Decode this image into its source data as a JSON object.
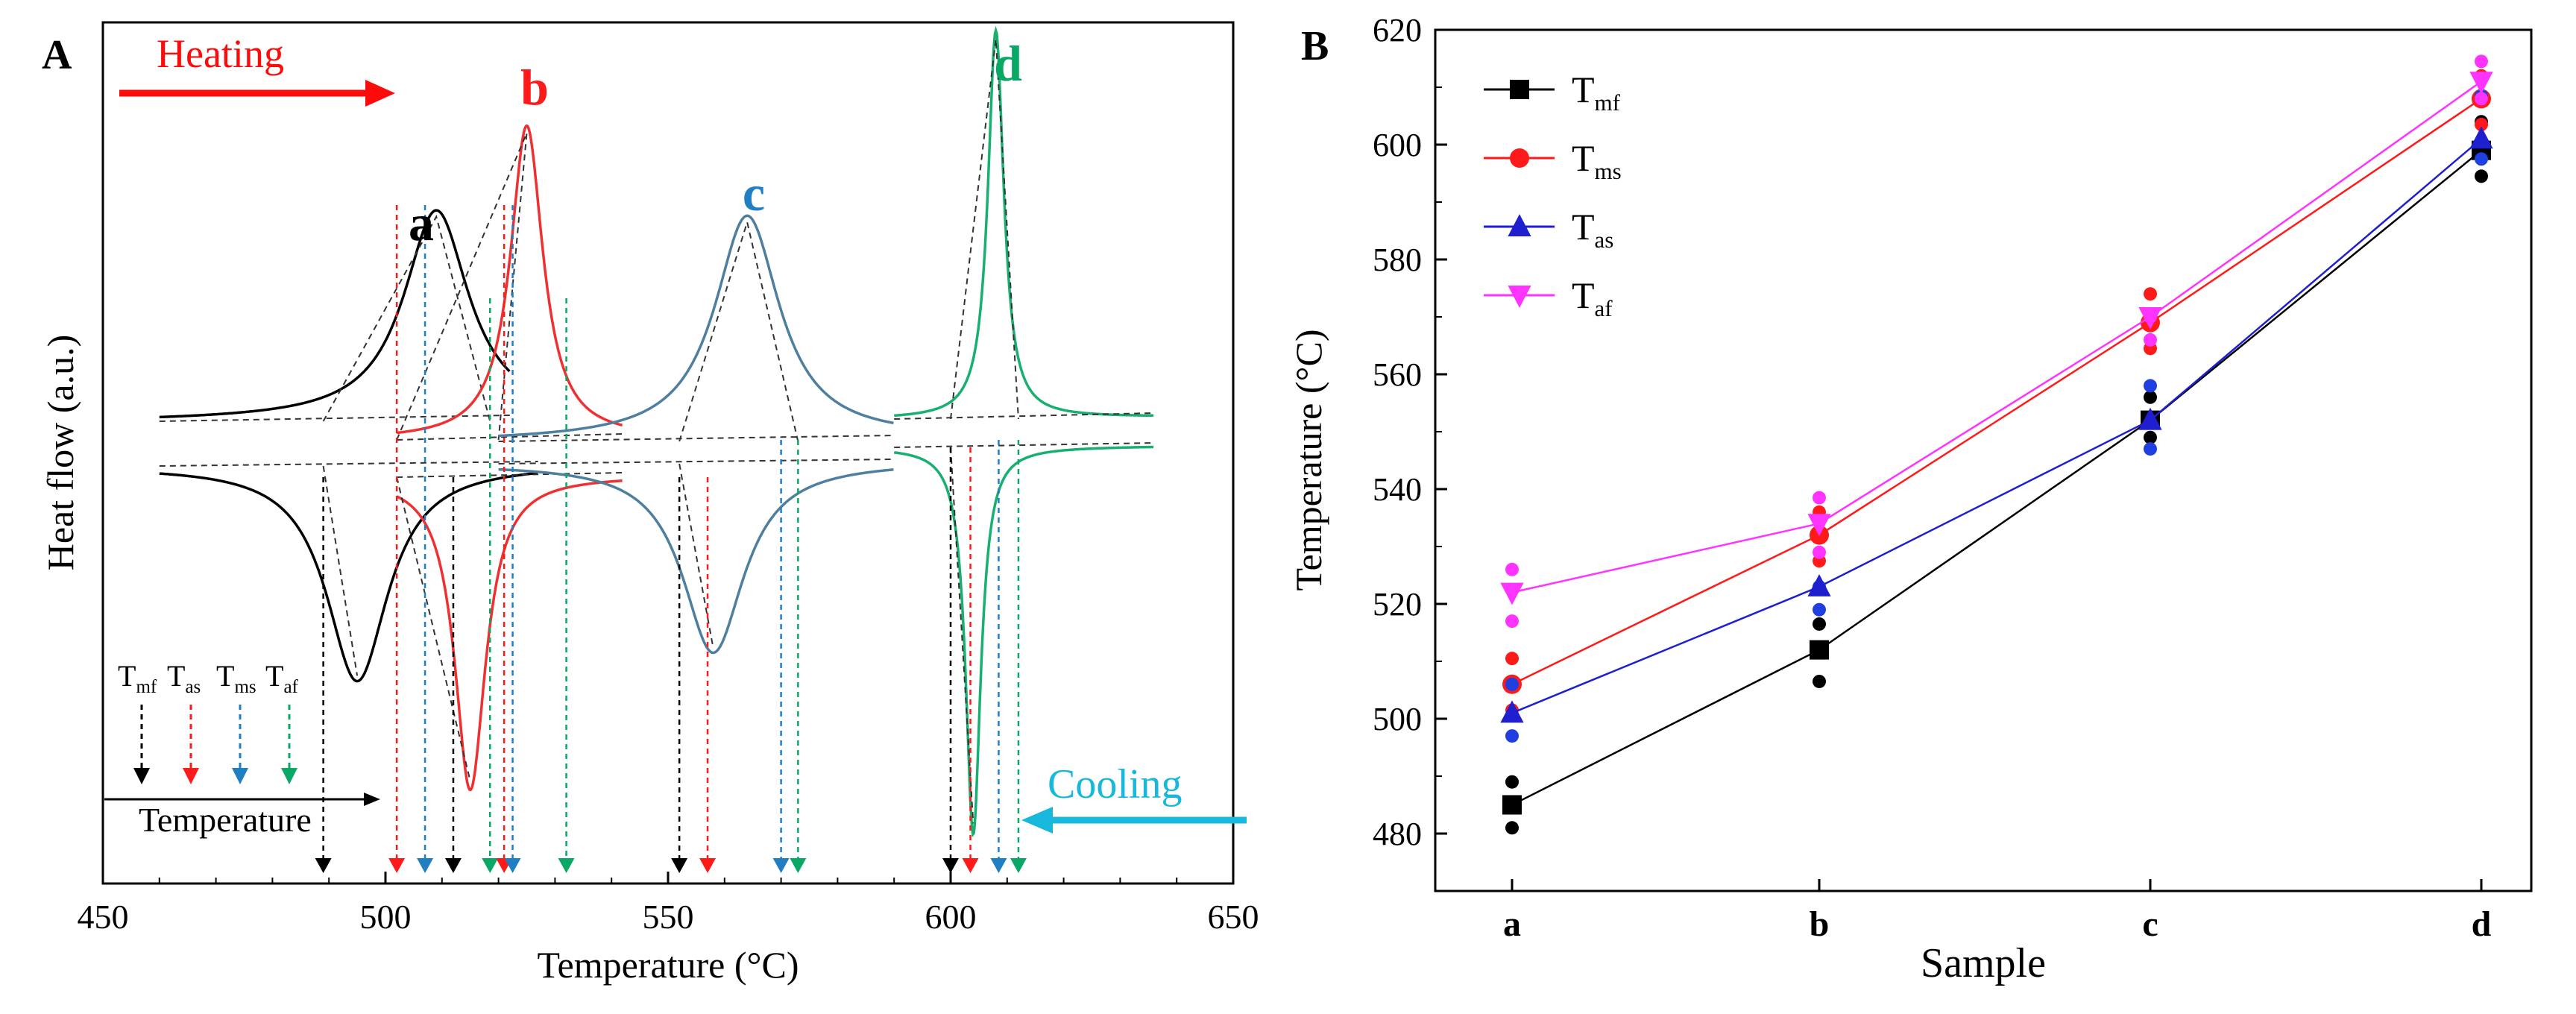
{
  "colors": {
    "black": "#000000",
    "red": "#ff1a1a",
    "blue": "#1f7fc2",
    "green": "#0aa865",
    "teal": "#4f7f9f",
    "dsc_red": "#f03030",
    "dsc_green": "#18b070",
    "heating_arrow": "#ff0a0a",
    "cooling_arrow": "#18b8dc",
    "pink": "#ff33ff",
    "tas_blue": "#1f1fd0",
    "marker_blue": "#1f3fe0"
  },
  "chart_data": [
    {
      "type": "line",
      "panel_label": "A",
      "title": "",
      "xlabel": "Temperature (°C)",
      "ylabel": "Heat flow (a.u.)",
      "xlim": [
        450,
        650
      ],
      "xticks": [
        450,
        500,
        550,
        600,
        650
      ],
      "grid": false,
      "annotations": {
        "heating": "Heating",
        "cooling": "Cooling",
        "temperature_arrow": "Temperature"
      },
      "legend": [
        {
          "label": "T",
          "sub": "mf",
          "color": "#000000"
        },
        {
          "label": "T",
          "sub": "as",
          "color": "#ff1a1a"
        },
        {
          "label": "T",
          "sub": "ms",
          "color": "#1f7fc2"
        },
        {
          "label": "T",
          "sub": "af",
          "color": "#0aa865"
        }
      ],
      "series": [
        {
          "name": "a",
          "color": "#000000",
          "heating_peak": 509,
          "cooling_peak": 495,
          "x_range": [
            460,
            522
          ]
        },
        {
          "name": "b",
          "color": "#f03030",
          "heating_peak": 525,
          "cooling_peak": 515,
          "x_range": [
            502,
            542
          ]
        },
        {
          "name": "c",
          "color": "#4f7f9f",
          "heating_peak": 564,
          "cooling_peak": 558,
          "x_range": [
            520,
            590
          ]
        },
        {
          "name": "d",
          "color": "#18b070",
          "heating_peak": 608,
          "cooling_peak": 604,
          "x_range": [
            590,
            636
          ]
        }
      ],
      "markers": [
        {
          "x": 489,
          "type": "mf"
        },
        {
          "x": 502,
          "type": "as"
        },
        {
          "x": 507,
          "type": "ms"
        },
        {
          "x": 512,
          "type": "mf"
        },
        {
          "x": 518.5,
          "type": "af"
        },
        {
          "x": 521,
          "type": "as"
        },
        {
          "x": 522.5,
          "type": "ms"
        },
        {
          "x": 532,
          "type": "af"
        },
        {
          "x": 552,
          "type": "mf"
        },
        {
          "x": 557,
          "type": "as"
        },
        {
          "x": 570,
          "type": "ms"
        },
        {
          "x": 573,
          "type": "af"
        },
        {
          "x": 600,
          "type": "mf"
        },
        {
          "x": 603.5,
          "type": "as"
        },
        {
          "x": 608.5,
          "type": "ms"
        },
        {
          "x": 612,
          "type": "af"
        }
      ]
    },
    {
      "type": "line",
      "panel_label": "B",
      "title": "",
      "xlabel": "Sample",
      "ylabel": "Temperature (°C)",
      "categories": [
        "a",
        "b",
        "c",
        "d"
      ],
      "ylim": [
        470,
        620
      ],
      "yticks": [
        480,
        500,
        520,
        540,
        560,
        580,
        600,
        620
      ],
      "grid": false,
      "legend_position": "top-left",
      "series": [
        {
          "name": "T",
          "sub": "mf",
          "marker": "square",
          "color": "#000000",
          "values": [
            485,
            512,
            552,
            599
          ],
          "scatter": [
            [
              481,
              489
            ],
            [
              506.5,
              516.5
            ],
            [
              549,
              556
            ],
            [
              594.5,
              604
            ]
          ]
        },
        {
          "name": "T",
          "sub": "ms",
          "marker": "circle",
          "color": "#ff1a1a",
          "values": [
            506,
            532,
            569,
            608
          ],
          "scatter": [
            [
              501.5,
              510.5
            ],
            [
              527.5,
              536
            ],
            [
              564.5,
              574
            ],
            [
              603.5,
              612
            ]
          ]
        },
        {
          "name": "T",
          "sub": "as",
          "marker": "triangle-up",
          "color": "#1f1fd0",
          "values": [
            501,
            523,
            552,
            601
          ],
          "scatter": [
            [
              497,
              506
            ],
            [
              519,
              523
            ],
            [
              547,
              558
            ],
            [
              597.5,
              608.5
            ]
          ]
        },
        {
          "name": "T",
          "sub": "af",
          "marker": "triangle-down",
          "color": "#ff33ff",
          "values": [
            522,
            534,
            570,
            611
          ],
          "scatter": [
            [
              517,
              526
            ],
            [
              529,
              538.5
            ],
            [
              566,
              570
            ],
            [
              608,
              614.5
            ]
          ]
        }
      ]
    }
  ]
}
